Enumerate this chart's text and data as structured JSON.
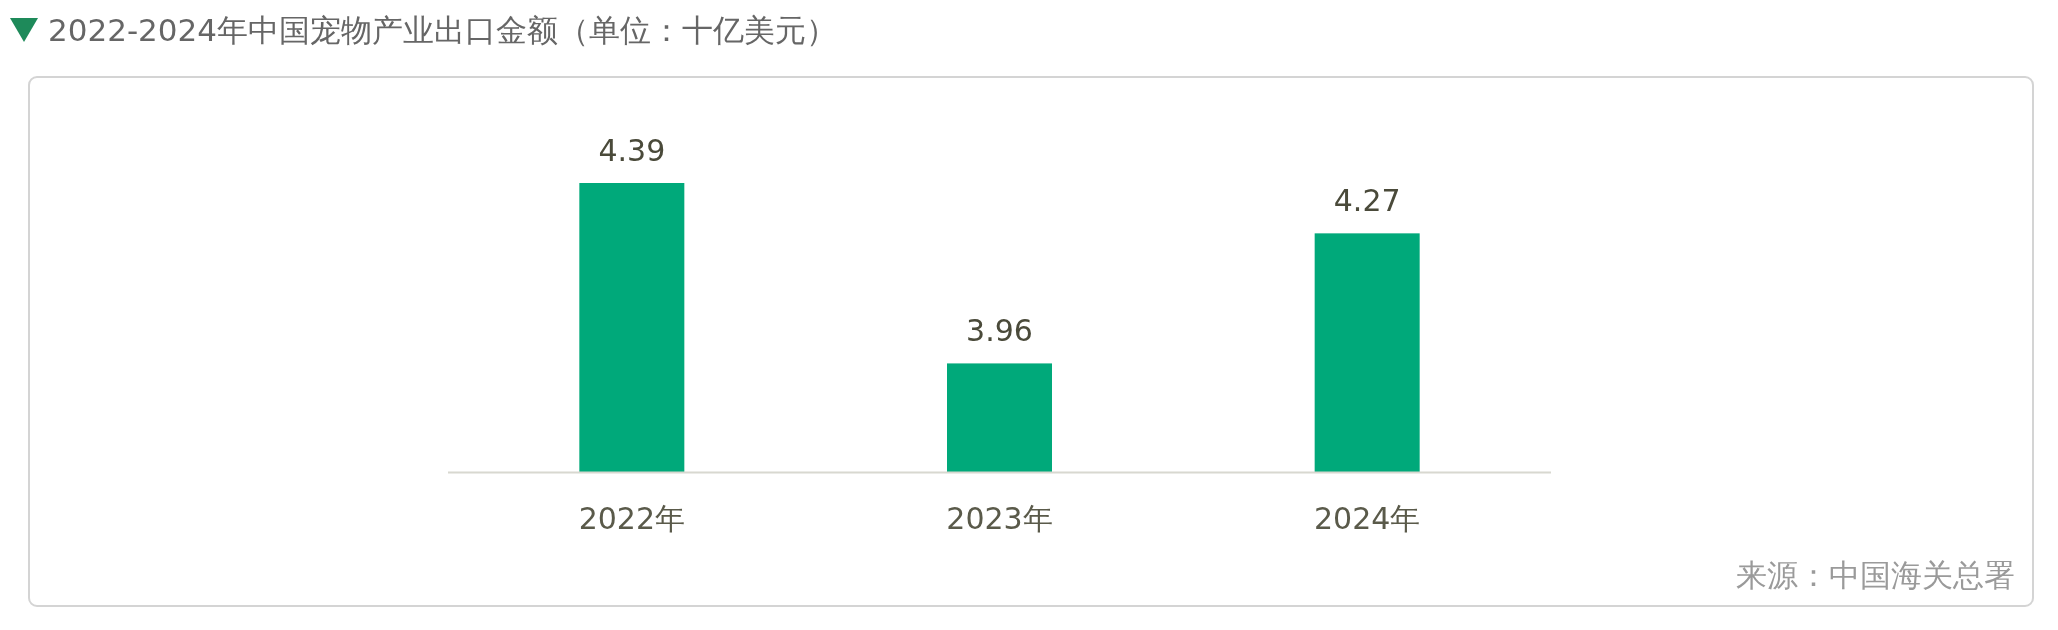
{
  "chart_data": {
    "type": "bar",
    "title": "2022-2024年中国宠物产业出口金额（单位：十亿美元）",
    "categories": [
      "2022年",
      "2023年",
      "2024年"
    ],
    "values": [
      4.39,
      3.96,
      4.27
    ],
    "color": "#00a97a",
    "data_labels": true,
    "ylim": [
      3.7,
      4.39
    ],
    "annotations": [
      "来源：中国海关总署"
    ]
  }
}
